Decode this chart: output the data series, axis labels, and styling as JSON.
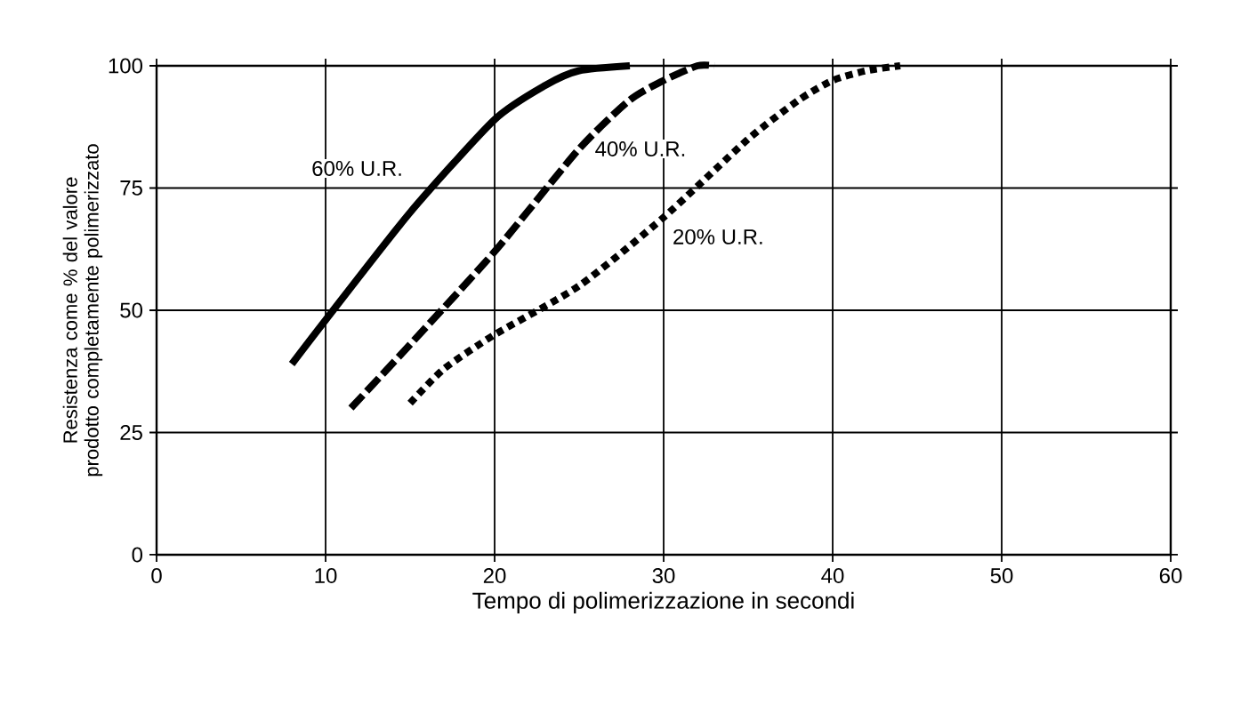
{
  "chart_data": {
    "type": "line",
    "xlabel": "Tempo di polimerizzazione in secondi",
    "ylabel": "Resistenza come % del valore prodotto completamente polimerizzato",
    "xlim": [
      0,
      60
    ],
    "ylim": [
      0,
      100
    ],
    "xticks": [
      0,
      10,
      20,
      30,
      40,
      50,
      60
    ],
    "yticks": [
      0,
      25,
      50,
      75,
      100
    ],
    "grid": true,
    "legend": false,
    "series": [
      {
        "name": "60% U.R.",
        "color": "#000000",
        "line_style": "solid",
        "x": [
          8,
          10,
          15,
          20,
          23,
          25,
          28
        ],
        "values": [
          39,
          48,
          70,
          89,
          96,
          99,
          100
        ]
      },
      {
        "name": "40% U.R.",
        "color": "#000000",
        "line_style": "dashed",
        "x": [
          11.5,
          15,
          20,
          25,
          28,
          30,
          32,
          33
        ],
        "values": [
          30,
          43,
          62,
          83,
          93,
          97,
          100,
          100
        ]
      },
      {
        "name": "20% U.R.",
        "color": "#000000",
        "line_style": "dotted",
        "x": [
          15,
          17,
          20,
          25,
          30,
          35,
          38,
          40,
          42,
          44
        ],
        "values": [
          31,
          38,
          45,
          55,
          69,
          85,
          93,
          97,
          99,
          100
        ]
      }
    ]
  }
}
